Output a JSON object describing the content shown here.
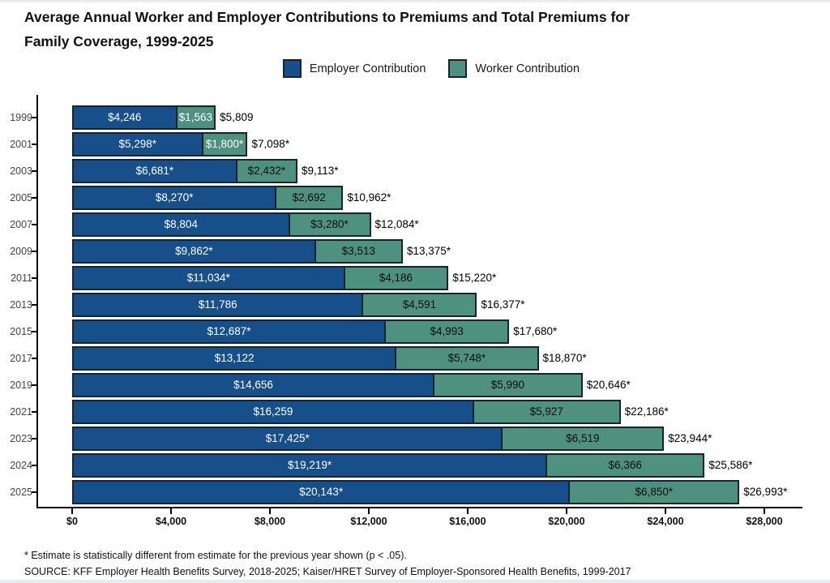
{
  "title": {
    "line1": "Average Annual Worker and Employer Contributions to Premiums and Total Premiums for",
    "line2": "Family Coverage, 1999-2025"
  },
  "legend": {
    "employer_label": "Employer Contribution",
    "worker_label": "Worker Contribution"
  },
  "colors": {
    "employer": "#174F8B",
    "worker": "#4E917F",
    "bar_border": "#15242f",
    "axis": "#000000",
    "employer_label_text": "#FFFFFF",
    "worker_label_text": "#0D0D0D"
  },
  "chart_data": {
    "type": "bar",
    "orientation": "horizontal",
    "stacked": true,
    "title": "Average Annual Worker and Employer Contributions to Premiums and Total Premiums for Family Coverage, 1999-2025",
    "categories": [
      "1999",
      "2001",
      "2003",
      "2005",
      "2007",
      "2009",
      "2011",
      "2013",
      "2015",
      "2017",
      "2019",
      "2021",
      "2023",
      "2024",
      "2025"
    ],
    "series": [
      {
        "name": "Employer Contribution",
        "color": "#174F8B",
        "values": [
          4246,
          5298,
          6681,
          8270,
          8804,
          9862,
          11034,
          11786,
          12687,
          13122,
          14656,
          16259,
          17425,
          19219,
          20143
        ],
        "labels": [
          "$4,246",
          "$5,298*",
          "$6,681*",
          "$8,270*",
          "$8,804",
          "$9,862*",
          "$11,034*",
          "$11,786",
          "$12,687*",
          "$13,122",
          "$14,656",
          "$16,259",
          "$17,425*",
          "$19,219*",
          "$20,143*"
        ],
        "label_color": "#FFFFFF"
      },
      {
        "name": "Worker Contribution",
        "color": "#4E917F",
        "values": [
          1563,
          1800,
          2432,
          2692,
          3280,
          3513,
          4186,
          4591,
          4993,
          5748,
          5990,
          5927,
          6519,
          6366,
          6850
        ],
        "labels": [
          "$1,563",
          "$1,800*",
          "$2,432*",
          "$2,692",
          "$3,280*",
          "$3,513",
          "$4,186",
          "$4,591",
          "$4,993",
          "$5,748*",
          "$5,990",
          "$5,927",
          "$6,519",
          "$6,366",
          "$6,850*"
        ],
        "label_color": "#0D0D0D",
        "white_label_indices": [
          0,
          1
        ]
      }
    ],
    "totals": {
      "values": [
        5809,
        7098,
        9113,
        10962,
        12084,
        13375,
        15220,
        16377,
        17680,
        18870,
        20646,
        22186,
        23944,
        25586,
        26993
      ],
      "labels": [
        "$5,809",
        "$7,098*",
        "$9,113*",
        "$10,962*",
        "$12,084*",
        "$13,375*",
        "$15,220*",
        "$16,377*",
        "$17,680*",
        "$18,870*",
        "$20,646*",
        "$22,186*",
        "$23,944*",
        "$25,586*",
        "$26,993*"
      ]
    },
    "x_axis": {
      "max": 28000,
      "ticks": [
        0,
        4000,
        8000,
        12000,
        16000,
        20000,
        24000,
        28000
      ],
      "tick_labels": [
        "$0",
        "$4,000",
        "$8,000",
        "$12,000",
        "$16,000",
        "$20,000",
        "$24,000",
        "$28,000"
      ]
    },
    "xlim": [
      0,
      28000
    ],
    "grid": false,
    "legend_position": "top"
  },
  "footnotes": {
    "asterisk": "* Estimate is statistically different from estimate for the previous year shown (p < .05).",
    "source": "SOURCE: KFF Employer Health Benefits Survey, 2018-2025; Kaiser/HRET Survey of Employer-Sponsored Health Benefits, 1999-2017"
  }
}
